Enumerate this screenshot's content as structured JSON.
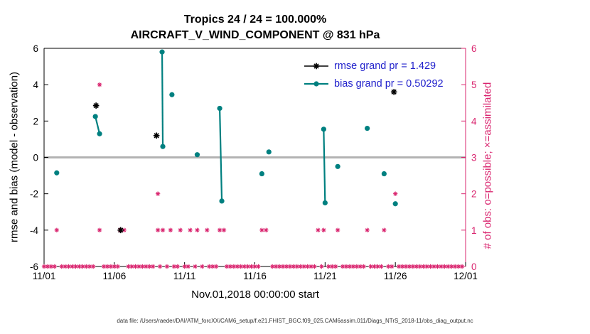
{
  "chart_data": {
    "type": "scatter",
    "title": "Tropics 24 / 24 = 100.000%",
    "subtitle": "AIRCRAFT_V_WIND_COMPONENT @ 831 hPa",
    "xlabel": "Nov.01,2018 00:00:00 start",
    "ylabel_left": "rmse and bias (model - observation)",
    "ylabel_right": "# of obs: o=possible; ×=assimilated",
    "footer": "data file: /Users/raeder/DAI/ATM_forcXX/CAM6_setup/f.e21.FHIST_BGC.f09_025.CAM6assim.011/Diags_NTrS_2018-11/obs_diag_output.nc",
    "x_unit": "day of November 2018 (11/01 = 1)",
    "x_range_days": [
      1,
      31
    ],
    "left_ylim": [
      -6,
      6
    ],
    "right_ylim": [
      0,
      6
    ],
    "grid": false,
    "legend_position": "top-right-inside",
    "x_ticks": [
      {
        "day": 1,
        "label": "11/01"
      },
      {
        "day": 6,
        "label": "11/06"
      },
      {
        "day": 11,
        "label": "11/11"
      },
      {
        "day": 16,
        "label": "11/16"
      },
      {
        "day": 21,
        "label": "11/21"
      },
      {
        "day": 26,
        "label": "11/26"
      },
      {
        "day": 31,
        "label": "12/01"
      }
    ],
    "left_ticks": [
      6,
      4,
      2,
      0,
      -2,
      -4,
      -6
    ],
    "right_ticks": [
      0,
      1,
      2,
      3,
      4,
      5,
      6
    ],
    "colors": {
      "rmse": "#000000",
      "bias": "#008080",
      "obs": "#d9246e",
      "zero_line": "#b3b3b3",
      "legend_text": "#2222cc",
      "axis": "#000000"
    },
    "legend": {
      "entries": [
        {
          "series": "rmse",
          "label": "rmse grand pr = 1.429"
        },
        {
          "series": "bias",
          "label": "bias grand pr = 0.50292"
        }
      ]
    },
    "series_rmse": {
      "name": "rmse",
      "marker": "asterisk",
      "points": [
        [
          4.7,
          2.85
        ],
        [
          6.45,
          -4.0
        ],
        [
          9.0,
          1.2
        ],
        [
          25.9,
          3.6
        ]
      ]
    },
    "series_bias": {
      "name": "bias",
      "marker": "filled-circle",
      "segments": [
        [
          [
            1.9,
            -0.85
          ]
        ],
        [
          [
            4.65,
            2.25
          ],
          [
            4.95,
            1.3
          ]
        ],
        [
          [
            9.4,
            5.8
          ],
          [
            9.45,
            0.6
          ]
        ],
        [
          [
            10.1,
            3.45
          ]
        ],
        [
          [
            11.9,
            0.15
          ]
        ],
        [
          [
            13.5,
            2.7
          ],
          [
            13.65,
            -2.4
          ]
        ],
        [
          [
            16.5,
            -0.9
          ]
        ],
        [
          [
            17.0,
            0.3
          ]
        ],
        [
          [
            20.9,
            1.55
          ],
          [
            21.0,
            -2.5
          ]
        ],
        [
          [
            21.9,
            -0.5
          ]
        ],
        [
          [
            24.0,
            1.6
          ]
        ],
        [
          [
            25.2,
            -0.9
          ]
        ],
        [
          [
            26.0,
            -2.55
          ]
        ]
      ]
    },
    "obs": {
      "axis": "right",
      "marker": "asterisk",
      "zero_row": {
        "start": 1.0,
        "end": 30.75,
        "step": 0.25,
        "count": 0,
        "skip_days": [
          1.9,
          4.7,
          4.95,
          6.4,
          6.7,
          9.1,
          9.45,
          10.0,
          10.7,
          11.4,
          11.9,
          12.6,
          13.5,
          13.8,
          16.5,
          16.8,
          17.0,
          20.5,
          20.9,
          21.9,
          24.0,
          25.2,
          26.0
        ]
      },
      "markers": [
        {
          "day": 1.9,
          "count": 1
        },
        {
          "day": 4.95,
          "count": 1
        },
        {
          "day": 4.95,
          "count": 5
        },
        {
          "day": 6.4,
          "count": 1
        },
        {
          "day": 6.7,
          "count": 1
        },
        {
          "day": 9.1,
          "count": 1
        },
        {
          "day": 9.1,
          "count": 2
        },
        {
          "day": 9.45,
          "count": 1
        },
        {
          "day": 10.0,
          "count": 1
        },
        {
          "day": 10.7,
          "count": 1
        },
        {
          "day": 11.4,
          "count": 1
        },
        {
          "day": 11.9,
          "count": 1
        },
        {
          "day": 12.6,
          "count": 1
        },
        {
          "day": 13.5,
          "count": 1
        },
        {
          "day": 13.8,
          "count": 1
        },
        {
          "day": 16.5,
          "count": 1
        },
        {
          "day": 16.8,
          "count": 1
        },
        {
          "day": 20.5,
          "count": 1
        },
        {
          "day": 20.9,
          "count": 1
        },
        {
          "day": 21.9,
          "count": 1
        },
        {
          "day": 24.0,
          "count": 1
        },
        {
          "day": 25.2,
          "count": 1
        },
        {
          "day": 26.0,
          "count": 2
        }
      ]
    }
  }
}
